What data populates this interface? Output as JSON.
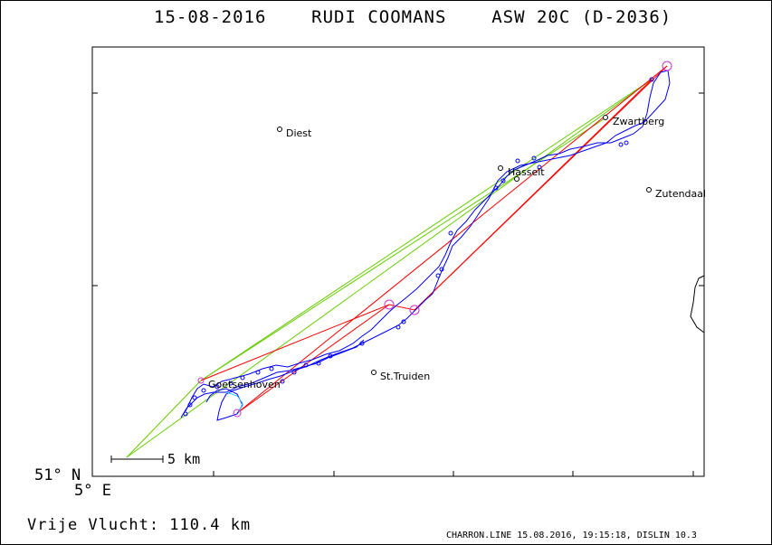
{
  "header": {
    "date": "15-08-2016",
    "pilot": "RUDI COOMANS",
    "glider": "ASW 20C (D-2036)"
  },
  "map": {
    "towns": [
      {
        "name": "Diest"
      },
      {
        "name": "Zwartberg"
      },
      {
        "name": "Hasselt"
      },
      {
        "name": "Zutendaal"
      },
      {
        "name": "St.Truiden"
      },
      {
        "name": "Goetsenhoven"
      }
    ],
    "scale_label": "5 km",
    "lat_label": "51° N",
    "lon_label": "5° E",
    "colors": {
      "track": "#0000ff",
      "task_lines": "#ff0000",
      "start_lines": "#66cc00",
      "turnpoint_markers": "#cc33cc",
      "track_segment": "#33ccff"
    }
  },
  "footer": {
    "distance_text": "Vrije Vlucht:  110.4 km",
    "info": "CHARRON.LINE 15.08.2016, 19:15:18, DISLIN 10.3"
  }
}
